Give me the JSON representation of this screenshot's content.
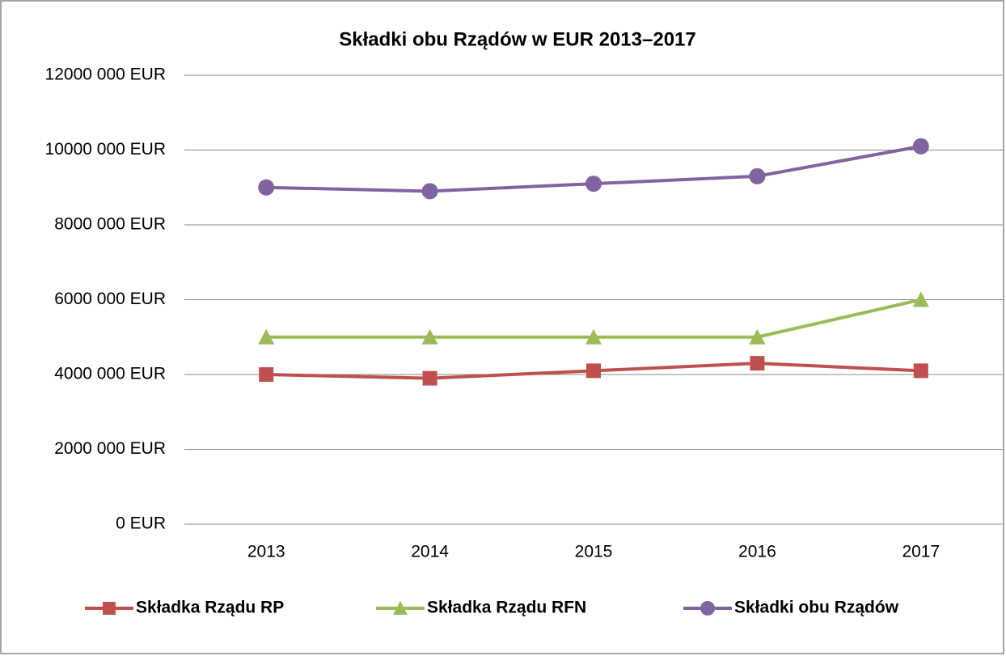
{
  "chart_data": {
    "type": "line",
    "title": "Składki obu Rządów w EUR 2013–2017",
    "categories": [
      "2013",
      "2014",
      "2015",
      "2016",
      "2017"
    ],
    "series": [
      {
        "name": "Składka Rządu RP",
        "color": "#c0504d",
        "marker": "square",
        "values": [
          4000000,
          3900000,
          4100000,
          4300000,
          4100000
        ]
      },
      {
        "name": "Składka Rządu RFN",
        "color": "#9bbb59",
        "marker": "triangle",
        "values": [
          5000000,
          5000000,
          5000000,
          5000000,
          6000000
        ]
      },
      {
        "name": "Składki obu Rządów",
        "color": "#8064a2",
        "marker": "circle",
        "values": [
          9000000,
          8900000,
          9100000,
          9300000,
          10100000
        ]
      }
    ],
    "ylim": [
      0,
      12000000
    ],
    "yticks": [
      {
        "value": 0,
        "label": "0 EUR"
      },
      {
        "value": 2000000,
        "label": "2000 000 EUR"
      },
      {
        "value": 4000000,
        "label": "4000 000 EUR"
      },
      {
        "value": 6000000,
        "label": "6000 000 EUR"
      },
      {
        "value": 8000000,
        "label": "8000 000 EUR"
      },
      {
        "value": 10000000,
        "label": "10000 000 EUR"
      },
      {
        "value": 12000000,
        "label": "12000 000 EUR"
      }
    ],
    "grid": true,
    "legend": "bottom"
  }
}
